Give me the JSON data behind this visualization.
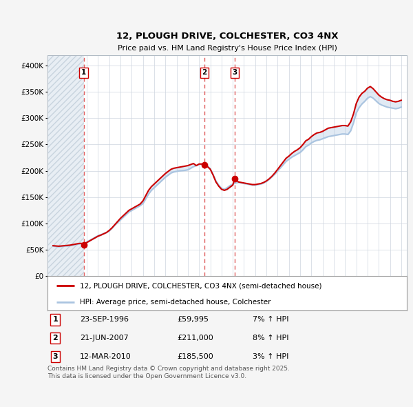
{
  "title": "12, PLOUGH DRIVE, COLCHESTER, CO3 4NX",
  "subtitle": "Price paid vs. HM Land Registry's House Price Index (HPI)",
  "xlim_start": 1993.5,
  "xlim_end": 2025.5,
  "ylim": [
    0,
    420000
  ],
  "yticks": [
    0,
    50000,
    100000,
    150000,
    200000,
    250000,
    300000,
    350000,
    400000
  ],
  "ytick_labels": [
    "£0",
    "£50K",
    "£100K",
    "£150K",
    "£200K",
    "£250K",
    "£300K",
    "£350K",
    "£400K"
  ],
  "hpi_color": "#aac4e0",
  "price_color": "#cc0000",
  "dashed_line_color": "#e06060",
  "bg_color": "#f5f5f5",
  "plot_bg_color": "#ffffff",
  "sales": [
    {
      "year": 1996.73,
      "price": 59995,
      "label": "1"
    },
    {
      "year": 2007.47,
      "price": 211000,
      "label": "2"
    },
    {
      "year": 2010.19,
      "price": 185500,
      "label": "3"
    }
  ],
  "sale_details": [
    {
      "num": "1",
      "date": "23-SEP-1996",
      "price": "£59,995",
      "hpi": "7% ↑ HPI"
    },
    {
      "num": "2",
      "date": "21-JUN-2007",
      "price": "£211,000",
      "hpi": "8% ↑ HPI"
    },
    {
      "num": "3",
      "date": "12-MAR-2010",
      "price": "£185,500",
      "hpi": "3% ↑ HPI"
    }
  ],
  "legend_line1": "12, PLOUGH DRIVE, COLCHESTER, CO3 4NX (semi-detached house)",
  "legend_line2": "HPI: Average price, semi-detached house, Colchester",
  "footer": "Contains HM Land Registry data © Crown copyright and database right 2025.\nThis data is licensed under the Open Government Licence v3.0.",
  "hpi_data_x": [
    1994.0,
    1994.25,
    1994.5,
    1994.75,
    1995.0,
    1995.25,
    1995.5,
    1995.75,
    1996.0,
    1996.25,
    1996.5,
    1996.75,
    1997.0,
    1997.25,
    1997.5,
    1997.75,
    1998.0,
    1998.25,
    1998.5,
    1998.75,
    1999.0,
    1999.25,
    1999.5,
    1999.75,
    2000.0,
    2000.25,
    2000.5,
    2000.75,
    2001.0,
    2001.25,
    2001.5,
    2001.75,
    2002.0,
    2002.25,
    2002.5,
    2002.75,
    2003.0,
    2003.25,
    2003.5,
    2003.75,
    2004.0,
    2004.25,
    2004.5,
    2004.75,
    2005.0,
    2005.25,
    2005.5,
    2005.75,
    2006.0,
    2006.25,
    2006.5,
    2006.75,
    2007.0,
    2007.25,
    2007.5,
    2007.75,
    2008.0,
    2008.25,
    2008.5,
    2008.75,
    2009.0,
    2009.25,
    2009.5,
    2009.75,
    2010.0,
    2010.25,
    2010.5,
    2010.75,
    2011.0,
    2011.25,
    2011.5,
    2011.75,
    2012.0,
    2012.25,
    2012.5,
    2012.75,
    2013.0,
    2013.25,
    2013.5,
    2013.75,
    2014.0,
    2014.25,
    2014.5,
    2014.75,
    2015.0,
    2015.25,
    2015.5,
    2015.75,
    2016.0,
    2016.25,
    2016.5,
    2016.75,
    2017.0,
    2017.25,
    2017.5,
    2017.75,
    2018.0,
    2018.25,
    2018.5,
    2018.75,
    2019.0,
    2019.25,
    2019.5,
    2019.75,
    2020.0,
    2020.25,
    2020.5,
    2020.75,
    2021.0,
    2021.25,
    2021.5,
    2021.75,
    2022.0,
    2022.25,
    2022.5,
    2022.75,
    2023.0,
    2023.25,
    2023.5,
    2023.75,
    2024.0,
    2024.25,
    2024.5,
    2024.75,
    2025.0
  ],
  "hpi_data_y": [
    57000,
    56500,
    56000,
    56500,
    57000,
    57500,
    58000,
    59000,
    60000,
    61000,
    62000,
    62500,
    65000,
    68000,
    71000,
    74000,
    77000,
    79000,
    81000,
    83000,
    86000,
    91000,
    97000,
    102000,
    107000,
    112000,
    117000,
    122000,
    125000,
    128000,
    131000,
    134000,
    138000,
    147000,
    156000,
    163000,
    168000,
    173000,
    178000,
    183000,
    188000,
    192000,
    196000,
    198000,
    199000,
    200000,
    200500,
    201000,
    202000,
    205000,
    208000,
    210000,
    212000,
    213000,
    212000,
    209000,
    204000,
    193000,
    181000,
    173000,
    167000,
    165000,
    168000,
    172000,
    175000,
    177000,
    178000,
    177000,
    176000,
    175000,
    174000,
    173000,
    173000,
    174000,
    175000,
    177000,
    180000,
    184000,
    189000,
    194000,
    200000,
    206000,
    212000,
    218000,
    222000,
    226000,
    229000,
    232000,
    235000,
    240000,
    246000,
    249000,
    253000,
    256000,
    258000,
    259000,
    261000,
    263000,
    265000,
    266000,
    267000,
    268000,
    269000,
    270000,
    270000,
    269000,
    276000,
    291000,
    310000,
    320000,
    327000,
    332000,
    338000,
    341000,
    338000,
    333000,
    328000,
    325000,
    323000,
    321000,
    320000,
    319000,
    318000,
    319000,
    321000
  ],
  "price_data_x": [
    1994.0,
    1994.25,
    1994.5,
    1994.75,
    1995.0,
    1995.25,
    1995.5,
    1995.75,
    1996.0,
    1996.25,
    1996.5,
    1996.73,
    1997.0,
    1997.25,
    1997.5,
    1997.75,
    1998.0,
    1998.25,
    1998.5,
    1998.75,
    1999.0,
    1999.25,
    1999.5,
    1999.75,
    2000.0,
    2000.25,
    2000.5,
    2000.75,
    2001.0,
    2001.25,
    2001.5,
    2001.75,
    2002.0,
    2002.25,
    2002.5,
    2002.75,
    2003.0,
    2003.25,
    2003.5,
    2003.75,
    2004.0,
    2004.25,
    2004.5,
    2004.75,
    2005.0,
    2005.25,
    2005.5,
    2005.75,
    2006.0,
    2006.25,
    2006.5,
    2006.75,
    2007.0,
    2007.25,
    2007.47,
    2007.75,
    2008.0,
    2008.25,
    2008.5,
    2008.75,
    2009.0,
    2009.25,
    2009.5,
    2009.75,
    2010.0,
    2010.19,
    2010.5,
    2010.75,
    2011.0,
    2011.25,
    2011.5,
    2011.75,
    2012.0,
    2012.25,
    2012.5,
    2012.75,
    2013.0,
    2013.25,
    2013.5,
    2013.75,
    2014.0,
    2014.25,
    2014.5,
    2014.75,
    2015.0,
    2015.25,
    2015.5,
    2015.75,
    2016.0,
    2016.25,
    2016.5,
    2016.75,
    2017.0,
    2017.25,
    2017.5,
    2017.75,
    2018.0,
    2018.25,
    2018.5,
    2018.75,
    2019.0,
    2019.25,
    2019.5,
    2019.75,
    2020.0,
    2020.25,
    2020.5,
    2020.75,
    2021.0,
    2021.25,
    2021.5,
    2021.75,
    2022.0,
    2022.25,
    2022.5,
    2022.75,
    2023.0,
    2023.25,
    2023.5,
    2023.75,
    2024.0,
    2024.25,
    2024.5,
    2024.75,
    2025.0
  ],
  "price_data_y": [
    58000,
    57500,
    57000,
    57500,
    58000,
    58500,
    59000,
    60000,
    61000,
    62000,
    62500,
    59995,
    64000,
    67000,
    70000,
    73000,
    76000,
    78000,
    80500,
    83000,
    87000,
    92000,
    98000,
    104000,
    110000,
    115000,
    120000,
    125000,
    128000,
    131000,
    134000,
    137000,
    143000,
    153000,
    163000,
    170000,
    175000,
    180000,
    185000,
    190000,
    195000,
    199000,
    203000,
    205000,
    206000,
    207000,
    208000,
    209000,
    210000,
    212000,
    214000,
    210000,
    213000,
    213000,
    211000,
    208000,
    203000,
    192000,
    179000,
    171000,
    165000,
    163000,
    165000,
    169000,
    173000,
    185500,
    179000,
    178000,
    177000,
    176000,
    175000,
    174000,
    174000,
    175000,
    176000,
    178000,
    181000,
    185000,
    190000,
    196000,
    203000,
    210000,
    217000,
    224000,
    228000,
    233000,
    237000,
    240000,
    244000,
    250000,
    257000,
    260000,
    265000,
    269000,
    272000,
    273000,
    275000,
    278000,
    281000,
    282000,
    283000,
    284000,
    285000,
    286000,
    286000,
    285000,
    293000,
    308000,
    328000,
    340000,
    347000,
    351000,
    357000,
    360000,
    356000,
    350000,
    344000,
    340000,
    337000,
    335000,
    334000,
    332000,
    331000,
    332000,
    334000
  ]
}
